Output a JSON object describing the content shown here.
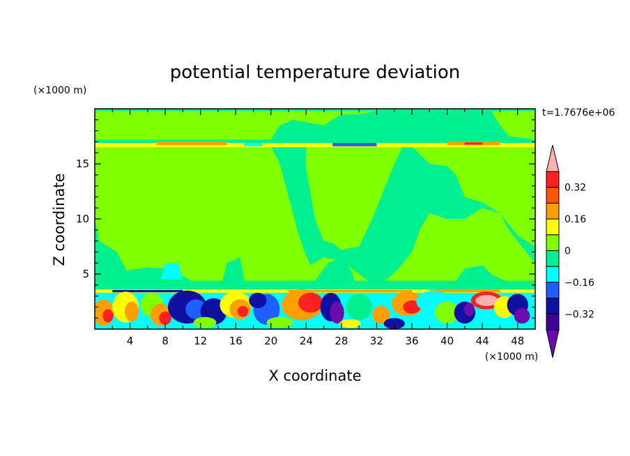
{
  "chart_data": {
    "type": "heatmap",
    "title": "potential temperature deviation",
    "xlabel": "X coordinate",
    "ylabel": "Z coordinate",
    "x_unit": "(×1000 m)",
    "y_unit": "(×1000 m)",
    "time_label": "t=1.7676e+06",
    "xlim": [
      0,
      50
    ],
    "ylim": [
      0,
      20
    ],
    "x_ticks": [
      4,
      8,
      12,
      16,
      20,
      24,
      28,
      32,
      36,
      40,
      44,
      48
    ],
    "y_ticks": [
      5,
      10,
      15
    ],
    "colorbar": {
      "levels": [
        -0.48,
        -0.4,
        -0.32,
        -0.24,
        -0.16,
        -0.08,
        0,
        0.08,
        0.16,
        0.24,
        0.32,
        0.4
      ],
      "labeled_levels": [
        "0.32",
        "0.16",
        "0",
        "−0.16",
        "−0.32"
      ],
      "colors": [
        "#6a0dad",
        "#3d0099",
        "#1010a0",
        "#1e5fff",
        "#00ffff",
        "#00f090",
        "#7fff00",
        "#ffff00",
        "#ffa000",
        "#ff5500",
        "#ff2020",
        "#ffb0b0"
      ],
      "extend": "both"
    },
    "grid": false
  }
}
